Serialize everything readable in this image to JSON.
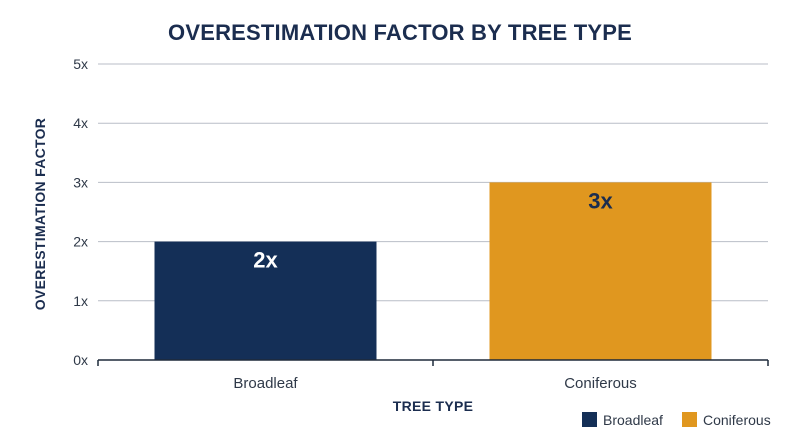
{
  "chart_data": {
    "type": "bar",
    "title": "OVERESTIMATION FACTOR BY TREE TYPE",
    "xlabel": "TREE TYPE",
    "ylabel": "OVERESTIMATION FACTOR",
    "categories": [
      "Broadleaf",
      "Coniferous"
    ],
    "values": [
      2,
      3
    ],
    "data_labels": [
      "2x",
      "3x"
    ],
    "ylim": [
      0,
      5
    ],
    "y_ticks": [
      "0x",
      "1x",
      "2x",
      "3x",
      "4x",
      "5x"
    ],
    "grid": true,
    "legend_position": "bottom-right",
    "legend": [
      "Broadleaf",
      "Coniferous"
    ],
    "colors": [
      "#142f57",
      "#e0971f"
    ],
    "data_label_colors": [
      "#ffffff",
      "#1b2d4f"
    ]
  }
}
